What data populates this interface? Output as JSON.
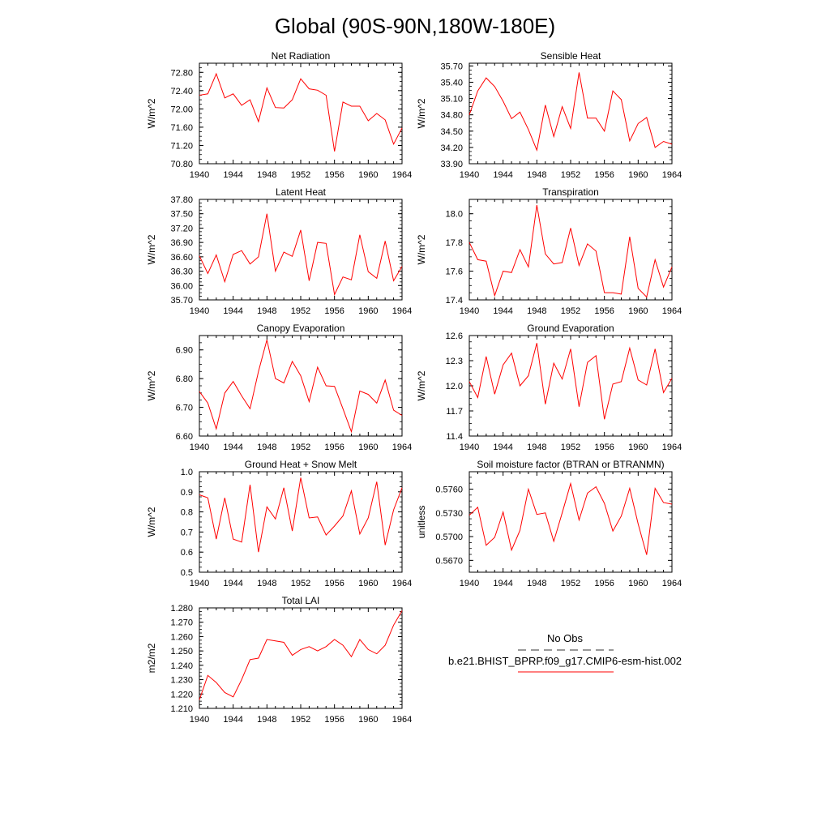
{
  "figure_title": "Global (90S-90N,180W-180E)",
  "legend": {
    "entries": [
      {
        "label": "No Obs",
        "color": "#333333",
        "style": "dashed"
      },
      {
        "label": "b.e21.BHIST_BPRP.f09_g17.CMIP6-esm-hist.002",
        "color": "#ff0000",
        "style": "solid"
      }
    ]
  },
  "chart_data": [
    {
      "type": "line",
      "title": "Net Radiation",
      "ylabel": "W/m^2",
      "xlabel": "",
      "xlim": [
        1940,
        1964
      ],
      "ylim": [
        70.8,
        73.0
      ],
      "xticks": [
        "1940",
        "1944",
        "1948",
        "1952",
        "1956",
        "1960",
        "1964"
      ],
      "yticks": [
        "70.80",
        "71.20",
        "71.60",
        "72.00",
        "72.40",
        "72.80"
      ],
      "series": [
        {
          "color": "#ff0000",
          "x": [
            1940,
            1941,
            1942,
            1943,
            1944,
            1945,
            1946,
            1947,
            1948,
            1949,
            1950,
            1951,
            1952,
            1953,
            1954,
            1955,
            1956,
            1957,
            1958,
            1959,
            1960,
            1961,
            1962,
            1963,
            1964
          ],
          "values": [
            72.3,
            72.33,
            72.77,
            72.24,
            72.33,
            72.08,
            72.2,
            71.72,
            72.46,
            72.03,
            72.02,
            72.2,
            72.66,
            72.44,
            72.41,
            72.3,
            71.07,
            72.15,
            72.06,
            72.06,
            71.74,
            71.9,
            71.76,
            71.23,
            71.58
          ]
        }
      ]
    },
    {
      "type": "line",
      "title": "Sensible Heat",
      "ylabel": "W/m^2",
      "xlabel": "",
      "xlim": [
        1940,
        1964
      ],
      "ylim": [
        33.9,
        35.75
      ],
      "xticks": [
        "1940",
        "1944",
        "1948",
        "1952",
        "1956",
        "1960",
        "1964"
      ],
      "yticks": [
        "33.90",
        "34.20",
        "34.50",
        "34.80",
        "35.10",
        "35.40",
        "35.70"
      ],
      "series": [
        {
          "color": "#ff0000",
          "x": [
            1940,
            1941,
            1942,
            1943,
            1944,
            1945,
            1946,
            1947,
            1948,
            1949,
            1950,
            1951,
            1952,
            1953,
            1954,
            1955,
            1956,
            1957,
            1958,
            1959,
            1960,
            1961,
            1962,
            1963,
            1964
          ],
          "values": [
            34.8,
            35.24,
            35.48,
            35.32,
            35.05,
            34.73,
            34.85,
            34.53,
            34.15,
            34.98,
            34.4,
            34.95,
            34.55,
            35.58,
            34.74,
            34.74,
            34.5,
            35.24,
            35.08,
            34.32,
            34.64,
            34.75,
            34.2,
            34.31,
            34.26
          ]
        }
      ]
    },
    {
      "type": "line",
      "title": "Latent Heat",
      "ylabel": "W/m^2",
      "xlabel": "",
      "xlim": [
        1940,
        1964
      ],
      "ylim": [
        35.7,
        37.8
      ],
      "xticks": [
        "1940",
        "1944",
        "1948",
        "1952",
        "1956",
        "1960",
        "1964"
      ],
      "yticks": [
        "35.70",
        "36.00",
        "36.30",
        "36.60",
        "36.90",
        "37.20",
        "37.50",
        "37.80"
      ],
      "series": [
        {
          "color": "#ff0000",
          "x": [
            1940,
            1941,
            1942,
            1943,
            1944,
            1945,
            1946,
            1947,
            1948,
            1949,
            1950,
            1951,
            1952,
            1953,
            1954,
            1955,
            1956,
            1957,
            1958,
            1959,
            1960,
            1961,
            1962,
            1963,
            1964
          ],
          "values": [
            36.62,
            36.25,
            36.64,
            36.08,
            36.65,
            36.73,
            36.45,
            36.6,
            37.5,
            36.3,
            36.7,
            36.61,
            37.16,
            36.1,
            36.9,
            36.88,
            35.81,
            36.18,
            36.12,
            37.06,
            36.29,
            36.15,
            36.93,
            36.1,
            36.4
          ]
        }
      ]
    },
    {
      "type": "line",
      "title": "Transpiration",
      "ylabel": "W/m^2",
      "xlabel": "",
      "xlim": [
        1940,
        1964
      ],
      "ylim": [
        17.4,
        18.1
      ],
      "xticks": [
        "1940",
        "1944",
        "1948",
        "1952",
        "1956",
        "1960",
        "1964"
      ],
      "yticks": [
        "17.4",
        "17.6",
        "17.8",
        "18.0"
      ],
      "series": [
        {
          "color": "#ff0000",
          "x": [
            1940,
            1941,
            1942,
            1943,
            1944,
            1945,
            1946,
            1947,
            1948,
            1949,
            1950,
            1951,
            1952,
            1953,
            1954,
            1955,
            1956,
            1957,
            1958,
            1959,
            1960,
            1961,
            1962,
            1963,
            1964
          ],
          "values": [
            17.8,
            17.68,
            17.67,
            17.43,
            17.6,
            17.59,
            17.75,
            17.63,
            18.06,
            17.72,
            17.65,
            17.66,
            17.9,
            17.64,
            17.79,
            17.74,
            17.45,
            17.45,
            17.44,
            17.84,
            17.48,
            17.42,
            17.68,
            17.49,
            17.63
          ]
        }
      ]
    },
    {
      "type": "line",
      "title": "Canopy Evaporation",
      "ylabel": "W/m^2",
      "xlabel": "",
      "xlim": [
        1940,
        1964
      ],
      "ylim": [
        6.6,
        6.95
      ],
      "xticks": [
        "1940",
        "1944",
        "1948",
        "1952",
        "1956",
        "1960",
        "1964"
      ],
      "yticks": [
        "6.60",
        "6.70",
        "6.80",
        "6.90"
      ],
      "series": [
        {
          "color": "#ff0000",
          "x": [
            1940,
            1941,
            1942,
            1943,
            1944,
            1945,
            1946,
            1947,
            1948,
            1949,
            1950,
            1951,
            1952,
            1953,
            1954,
            1955,
            1956,
            1957,
            1958,
            1959,
            1960,
            1961,
            1962,
            1963,
            1964
          ],
          "values": [
            6.755,
            6.715,
            6.625,
            6.75,
            6.79,
            6.74,
            6.695,
            6.825,
            6.935,
            6.8,
            6.785,
            6.86,
            6.81,
            6.72,
            6.84,
            6.775,
            6.773,
            6.695,
            6.615,
            6.757,
            6.745,
            6.715,
            6.795,
            6.69,
            6.672
          ]
        }
      ]
    },
    {
      "type": "line",
      "title": "Ground Evaporation",
      "ylabel": "W/m^2",
      "xlabel": "",
      "xlim": [
        1940,
        1964
      ],
      "ylim": [
        11.4,
        12.6
      ],
      "xticks": [
        "1940",
        "1944",
        "1948",
        "1952",
        "1956",
        "1960",
        "1964"
      ],
      "yticks": [
        "11.4",
        "11.7",
        "12.0",
        "12.3",
        "12.6"
      ],
      "series": [
        {
          "color": "#ff0000",
          "x": [
            1940,
            1941,
            1942,
            1943,
            1944,
            1945,
            1946,
            1947,
            1948,
            1949,
            1950,
            1951,
            1952,
            1953,
            1954,
            1955,
            1956,
            1957,
            1958,
            1959,
            1960,
            1961,
            1962,
            1963,
            1964
          ],
          "values": [
            12.05,
            11.86,
            12.35,
            11.9,
            12.25,
            12.39,
            12.0,
            12.12,
            12.51,
            11.78,
            12.27,
            12.08,
            12.44,
            11.75,
            12.28,
            12.36,
            11.6,
            12.02,
            12.05,
            12.45,
            12.07,
            12.01,
            12.44,
            11.92,
            12.09
          ]
        }
      ]
    },
    {
      "type": "line",
      "title": "Ground Heat + Snow Melt",
      "ylabel": "W/m^2",
      "xlabel": "",
      "xlim": [
        1940,
        1964
      ],
      "ylim": [
        0.5,
        1.0
      ],
      "xticks": [
        "1940",
        "1944",
        "1948",
        "1952",
        "1956",
        "1960",
        "1964"
      ],
      "yticks": [
        "0.5",
        "0.6",
        "0.7",
        "0.8",
        "0.9",
        "1.0"
      ],
      "series": [
        {
          "color": "#ff0000",
          "x": [
            1940,
            1941,
            1942,
            1943,
            1944,
            1945,
            1946,
            1947,
            1948,
            1949,
            1950,
            1951,
            1952,
            1953,
            1954,
            1955,
            1956,
            1957,
            1958,
            1959,
            1960,
            1961,
            1962,
            1963,
            1964
          ],
          "values": [
            0.885,
            0.87,
            0.665,
            0.87,
            0.665,
            0.65,
            0.935,
            0.6,
            0.825,
            0.765,
            0.92,
            0.705,
            0.97,
            0.77,
            0.775,
            0.685,
            0.73,
            0.78,
            0.905,
            0.69,
            0.77,
            0.95,
            0.635,
            0.81,
            0.92
          ]
        }
      ]
    },
    {
      "type": "line",
      "title": "Soil moisture factor (BTRAN or BTRANMN)",
      "ylabel": "unitless",
      "xlabel": "",
      "xlim": [
        1940,
        1964
      ],
      "ylim": [
        0.5655,
        0.5782
      ],
      "xticks": [
        "1940",
        "1944",
        "1948",
        "1952",
        "1956",
        "1960",
        "1964"
      ],
      "yticks": [
        "0.5670",
        "0.5700",
        "0.5730",
        "0.5760"
      ],
      "series": [
        {
          "color": "#ff0000",
          "x": [
            1940,
            1941,
            1942,
            1943,
            1944,
            1945,
            1946,
            1947,
            1948,
            1949,
            1950,
            1951,
            1952,
            1953,
            1954,
            1955,
            1956,
            1957,
            1958,
            1959,
            1960,
            1961,
            1962,
            1963,
            1964
          ],
          "values": [
            0.5727,
            0.5737,
            0.5689,
            0.5699,
            0.5731,
            0.5683,
            0.5708,
            0.576,
            0.5728,
            0.573,
            0.5694,
            0.573,
            0.5767,
            0.5721,
            0.5755,
            0.5763,
            0.5742,
            0.5707,
            0.5726,
            0.5761,
            0.5716,
            0.5677,
            0.5761,
            0.5743,
            0.5741
          ]
        }
      ]
    },
    {
      "type": "line",
      "title": "Total LAI",
      "ylabel": "m2/m2",
      "xlabel": "",
      "xlim": [
        1940,
        1964
      ],
      "ylim": [
        1.21,
        1.28
      ],
      "xticks": [
        "1940",
        "1944",
        "1948",
        "1952",
        "1956",
        "1960",
        "1964"
      ],
      "yticks": [
        "1.210",
        "1.220",
        "1.230",
        "1.240",
        "1.250",
        "1.260",
        "1.270",
        "1.280"
      ],
      "series": [
        {
          "color": "#ff0000",
          "x": [
            1940,
            1941,
            1942,
            1943,
            1944,
            1945,
            1946,
            1947,
            1948,
            1949,
            1950,
            1951,
            1952,
            1953,
            1954,
            1955,
            1956,
            1957,
            1958,
            1959,
            1960,
            1961,
            1962,
            1963,
            1964
          ],
          "values": [
            1.216,
            1.233,
            1.228,
            1.221,
            1.218,
            1.23,
            1.244,
            1.245,
            1.258,
            1.257,
            1.256,
            1.247,
            1.251,
            1.253,
            1.25,
            1.253,
            1.258,
            1.254,
            1.246,
            1.258,
            1.251,
            1.248,
            1.254,
            1.268,
            1.278
          ]
        }
      ]
    }
  ]
}
